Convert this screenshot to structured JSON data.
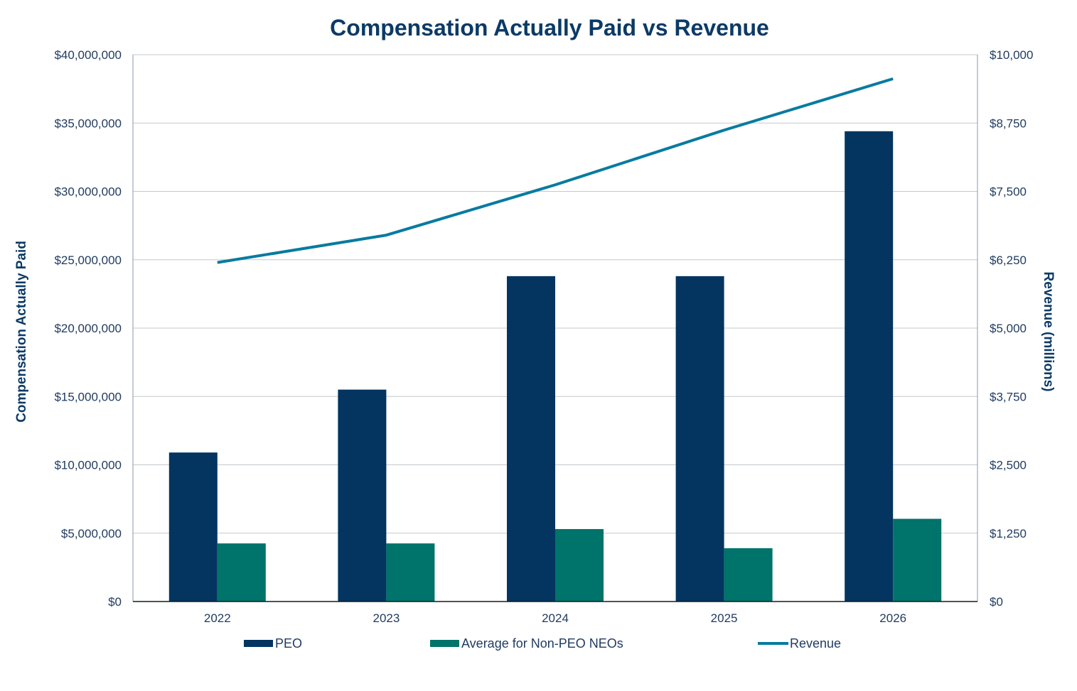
{
  "chart_data": {
    "type": "bar",
    "title": "Compensation Actually Paid vs Revenue",
    "ylabel": "Compensation Actually Paid",
    "y2label": "Revenue (millions)",
    "categories": [
      "2022",
      "2023",
      "2024",
      "2025",
      "2026"
    ],
    "ylim": [
      0,
      40000000
    ],
    "y2lim": [
      0,
      10000
    ],
    "yticks": [
      "$0",
      "$5,000,000",
      "$10,000,000",
      "$15,000,000",
      "$20,000,000",
      "$25,000,000",
      "$30,000,000",
      "$35,000,000",
      "$40,000,000"
    ],
    "y2ticks": [
      "$0",
      "$1,250",
      "$2,500",
      "$3,750",
      "$5,000",
      "$6,250",
      "$7,500",
      "$8,750",
      "$10,000"
    ],
    "grid": true,
    "legend_position": "bottom",
    "series": [
      {
        "name": "PEO",
        "type": "bar",
        "axis": "left",
        "color": "#033560",
        "values": [
          10900000,
          15500000,
          23800000,
          23800000,
          34400000
        ]
      },
      {
        "name": "Average for Non-PEO NEOs",
        "type": "bar",
        "axis": "left",
        "color": "#00736a",
        "values": [
          4250000,
          4250000,
          5300000,
          3900000,
          6050000
        ]
      },
      {
        "name": "Revenue",
        "type": "line",
        "axis": "right",
        "color": "#087ba0",
        "values": [
          6200,
          6700,
          7620,
          8620,
          9560
        ]
      }
    ]
  }
}
